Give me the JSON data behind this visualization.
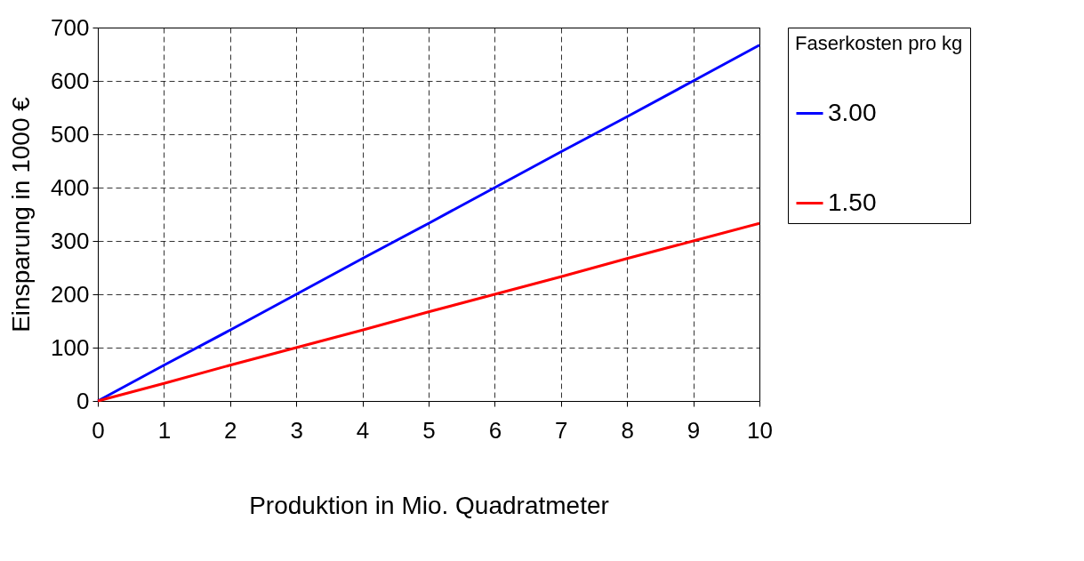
{
  "chart_data": {
    "type": "line",
    "xlabel": "Produktion in Mio. Quadratmeter",
    "ylabel": "Einsparung in 1000 €",
    "legend_title": "Faserkosten pro kg",
    "x": [
      0,
      1,
      2,
      3,
      4,
      5,
      6,
      7,
      8,
      9,
      10
    ],
    "series": [
      {
        "name": "3.00",
        "color": "#0000ff",
        "values": [
          0,
          67,
          133,
          200,
          267,
          333,
          400,
          467,
          533,
          600,
          667
        ]
      },
      {
        "name": "1.50",
        "color": "#ff0000",
        "values": [
          0,
          33,
          67,
          100,
          133,
          167,
          200,
          233,
          267,
          300,
          333
        ]
      }
    ],
    "xlim": [
      0,
      10
    ],
    "xticks": [
      0,
      1,
      2,
      3,
      4,
      5,
      6,
      7,
      8,
      9,
      10
    ],
    "ylim": [
      0,
      700
    ],
    "yticks": [
      0,
      100,
      200,
      300,
      400,
      500,
      600,
      700
    ],
    "grid": true,
    "legend": "right",
    "marker": "none",
    "line_style": "solid"
  }
}
